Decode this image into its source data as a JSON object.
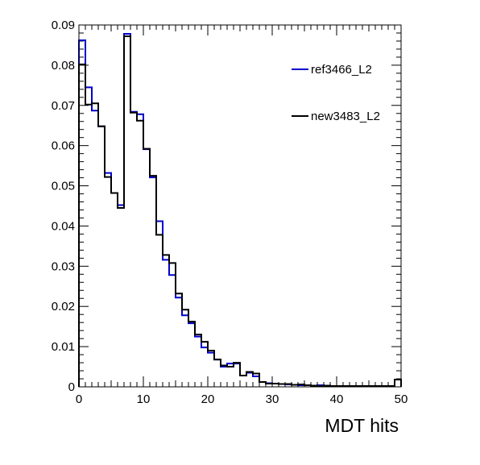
{
  "chart_data": {
    "type": "step-histogram",
    "xlabel": "MDT hits",
    "ylabel": "",
    "xlim": [
      0,
      50
    ],
    "ylim": [
      0,
      0.09
    ],
    "bin_width": 1,
    "x_ticks": [
      0,
      10,
      20,
      30,
      40,
      50
    ],
    "y_ticks": [
      0,
      0.01,
      0.02,
      0.03,
      0.04,
      0.05,
      0.06,
      0.07,
      0.08,
      0.09
    ],
    "x_tick_labels": [
      "0",
      "10",
      "20",
      "30",
      "40",
      "50"
    ],
    "y_tick_labels": [
      "0",
      "0.01",
      "0.02",
      "0.03",
      "0.04",
      "0.05",
      "0.06",
      "0.07",
      "0.08",
      "0.09"
    ],
    "legend_position": "top-right",
    "series": [
      {
        "name": "ref3466_L2",
        "color": "#0000cc",
        "values": [
          0.0862,
          0.0745,
          0.0687,
          0.0648,
          0.0532,
          0.0482,
          0.0452,
          0.0878,
          0.0684,
          0.0678,
          0.0591,
          0.0521,
          0.0412,
          0.0316,
          0.0278,
          0.0222,
          0.0178,
          0.0158,
          0.0125,
          0.0098,
          0.0085,
          0.0068,
          0.005,
          0.0058,
          0.0058,
          0.0028,
          0.0035,
          0.0026,
          0.0012,
          0.0009,
          0.0008,
          0.0007,
          0.0006,
          0.0005,
          0.0004,
          0.0004,
          0.0003,
          0.0004,
          0.0003,
          0.0002,
          0.0002,
          0.0002,
          0.0002,
          0.0002,
          0.0002,
          0.0002,
          0.0002,
          0.0002,
          0.0002,
          0.0018
        ]
      },
      {
        "name": "new3483_L2",
        "color": "#000000",
        "values": [
          0.0802,
          0.0702,
          0.0705,
          0.0648,
          0.0522,
          0.0482,
          0.0445,
          0.0872,
          0.0682,
          0.0662,
          0.0592,
          0.0525,
          0.0378,
          0.0328,
          0.0308,
          0.0232,
          0.0192,
          0.0162,
          0.013,
          0.0112,
          0.009,
          0.0068,
          0.0053,
          0.005,
          0.006,
          0.0028,
          0.0037,
          0.0033,
          0.0012,
          0.0008,
          0.0008,
          0.0007,
          0.0007,
          0.0005,
          0.0006,
          0.0004,
          0.0003,
          0.0002,
          0.0003,
          0.0002,
          0.0002,
          0.0002,
          0.0002,
          0.0002,
          0.0002,
          0.0002,
          0.0002,
          0.0002,
          0.0002,
          0.0018
        ]
      }
    ]
  }
}
